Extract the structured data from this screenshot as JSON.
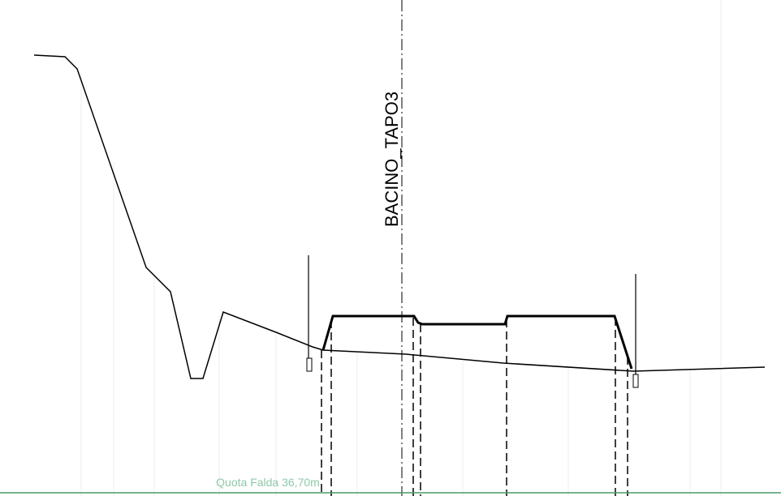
{
  "label": "BACINO_TAPO3",
  "water_table": "Quota Falda 36,70m"
}
